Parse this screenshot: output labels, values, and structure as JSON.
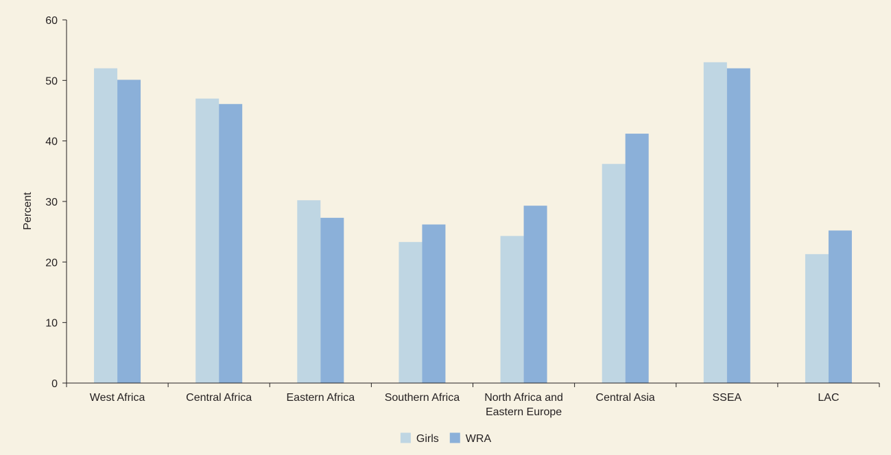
{
  "chart_data": {
    "type": "bar",
    "ylabel": "Percent",
    "xlabel": "",
    "ylim": [
      0,
      60
    ],
    "yticks": [
      0,
      10,
      20,
      30,
      40,
      50,
      60
    ],
    "grid": false,
    "legend_position": "bottom-center",
    "categories": [
      [
        "West Africa"
      ],
      [
        "Central Africa"
      ],
      [
        "Eastern Africa"
      ],
      [
        "Southern Africa"
      ],
      [
        "North Africa and",
        "Eastern Europe"
      ],
      [
        "Central Asia"
      ],
      [
        "SSEA"
      ],
      [
        "LAC"
      ]
    ],
    "series": [
      {
        "name": "Girls",
        "color": "#bfd6e3",
        "values": [
          52,
          47,
          30.2,
          23.3,
          24.3,
          36.2,
          53,
          21.3
        ]
      },
      {
        "name": "WRA",
        "color": "#8bb0d9",
        "values": [
          50.1,
          46.1,
          27.3,
          26.2,
          29.3,
          41.2,
          52,
          25.2
        ]
      }
    ]
  },
  "colors": {
    "background": "#f7f2e3",
    "axis": "#231f20",
    "text": "#231f20"
  }
}
